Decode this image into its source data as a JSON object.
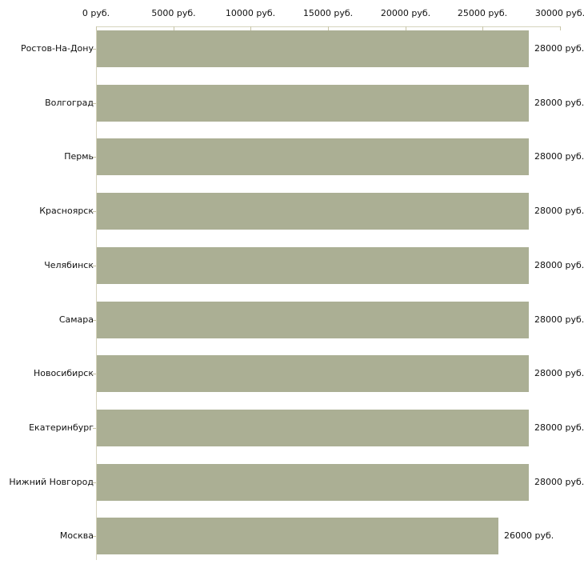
{
  "chart_data": {
    "type": "bar",
    "orientation": "horizontal",
    "title": "",
    "xlabel": "",
    "ylabel": "",
    "categories": [
      "Ростов-На-Дону",
      "Волгоград",
      "Пермь",
      "Красноярск",
      "Челябинск",
      "Самара",
      "Новосибирск",
      "Екатеринбург",
      "Нижний Новгород",
      "Москва"
    ],
    "values": [
      28000,
      28000,
      28000,
      28000,
      28000,
      28000,
      28000,
      28000,
      28000,
      26000
    ],
    "value_labels": [
      "28000 руб.",
      "28000 руб.",
      "28000 руб.",
      "28000 руб.",
      "28000 руб.",
      "28000 руб.",
      "28000 руб.",
      "28000 руб.",
      "28000 руб.",
      "26000 руб."
    ],
    "x_axis": {
      "position": "top",
      "min": 0,
      "max": 30000,
      "tick_step": 5000,
      "tick_values": [
        0,
        5000,
        10000,
        15000,
        20000,
        25000,
        30000
      ],
      "tick_labels": [
        "0 руб.",
        "5000 руб.",
        "10000 руб.",
        "15000 руб.",
        "20000 руб.",
        "25000 руб.",
        "30000 руб."
      ]
    },
    "grid": false,
    "legend": false,
    "colors": {
      "bar": "#abaf94",
      "axis_line": "#d6d3bd",
      "tick_mark": "#c8c4a6",
      "text": "#111111",
      "background": "#ffffff"
    }
  }
}
